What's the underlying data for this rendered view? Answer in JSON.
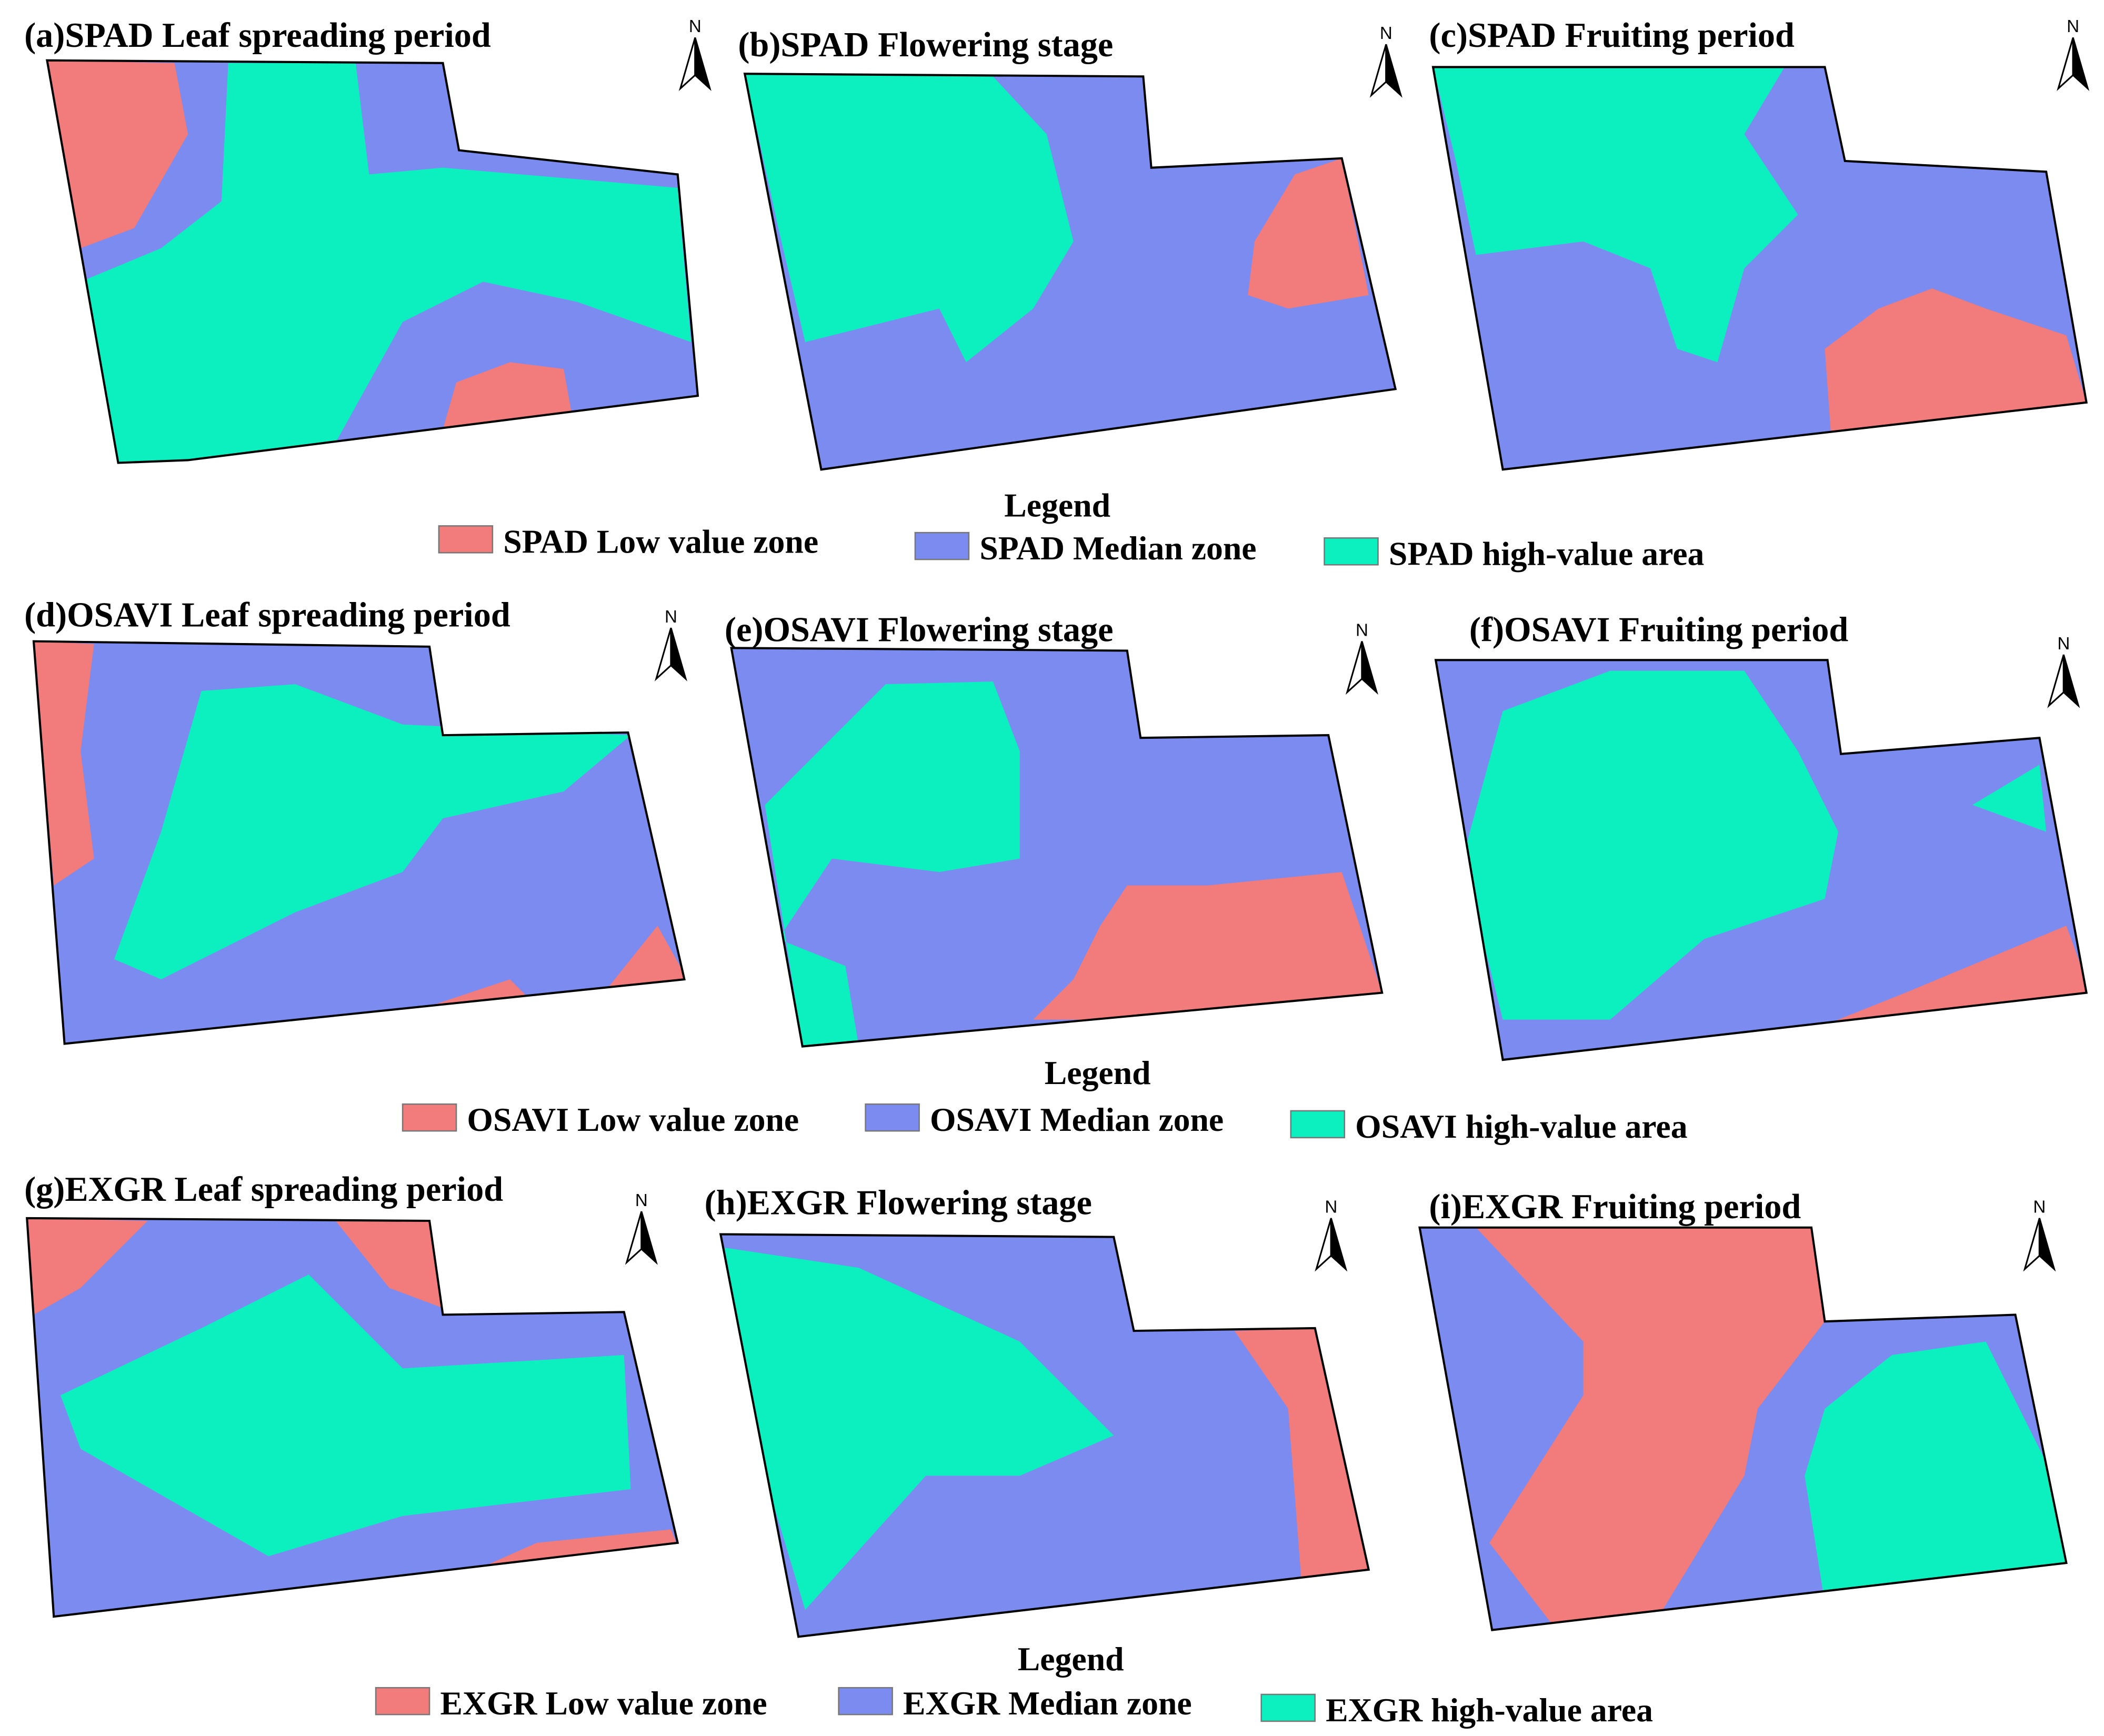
{
  "panels": [
    {
      "title": "(a)SPAD Leaf spreading period",
      "north": "N"
    },
    {
      "title": "(b)SPAD Flowering stage",
      "north": "N"
    },
    {
      "title": "(c)SPAD Fruiting period",
      "north": "N"
    },
    {
      "title": "(d)OSAVI Leaf spreading period",
      "north": "N"
    },
    {
      "title": "(e)OSAVI Flowering stage",
      "north": "N"
    },
    {
      "title": "(f)OSAVI Fruiting period",
      "north": "N"
    },
    {
      "title": "(g)EXGR Leaf spreading period",
      "north": "N"
    },
    {
      "title": "(h)EXGR Flowering stage",
      "north": "N"
    },
    {
      "title": "(i)EXGR Fruiting period",
      "north": "N"
    }
  ],
  "legends": [
    {
      "title": "Legend",
      "items": [
        "SPAD Low value zone",
        "SPAD Median zone",
        "SPAD high-value area"
      ]
    },
    {
      "title": "Legend",
      "items": [
        "OSAVI Low value zone",
        "OSAVI Median zone",
        "OSAVI high-value area"
      ]
    },
    {
      "title": "Legend",
      "items": [
        "EXGR Low value zone",
        "EXGR Median zone",
        "EXGR high-value area"
      ]
    }
  ]
}
